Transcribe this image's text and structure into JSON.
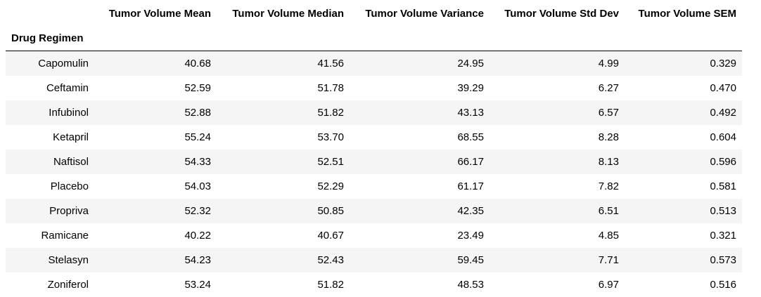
{
  "table": {
    "index_name": "Drug Regimen",
    "columns": [
      "Tumor Volume Mean",
      "Tumor Volume Median",
      "Tumor Volume Variance",
      "Tumor Volume Std Dev",
      "Tumor Volume SEM"
    ],
    "rows": [
      {
        "label": "Capomulin",
        "values": [
          "40.68",
          "41.56",
          "24.95",
          "4.99",
          "0.329"
        ]
      },
      {
        "label": "Ceftamin",
        "values": [
          "52.59",
          "51.78",
          "39.29",
          "6.27",
          "0.470"
        ]
      },
      {
        "label": "Infubinol",
        "values": [
          "52.88",
          "51.82",
          "43.13",
          "6.57",
          "0.492"
        ]
      },
      {
        "label": "Ketapril",
        "values": [
          "55.24",
          "53.70",
          "68.55",
          "8.28",
          "0.604"
        ]
      },
      {
        "label": "Naftisol",
        "values": [
          "54.33",
          "52.51",
          "66.17",
          "8.13",
          "0.596"
        ]
      },
      {
        "label": "Placebo",
        "values": [
          "54.03",
          "52.29",
          "61.17",
          "7.82",
          "0.581"
        ]
      },
      {
        "label": "Propriva",
        "values": [
          "52.32",
          "50.85",
          "42.35",
          "6.51",
          "0.513"
        ]
      },
      {
        "label": "Ramicane",
        "values": [
          "40.22",
          "40.67",
          "23.49",
          "4.85",
          "0.321"
        ]
      },
      {
        "label": "Stelasyn",
        "values": [
          "54.23",
          "52.43",
          "59.45",
          "7.71",
          "0.573"
        ]
      },
      {
        "label": "Zoniferol",
        "values": [
          "53.24",
          "51.82",
          "48.53",
          "6.97",
          "0.516"
        ]
      }
    ]
  }
}
